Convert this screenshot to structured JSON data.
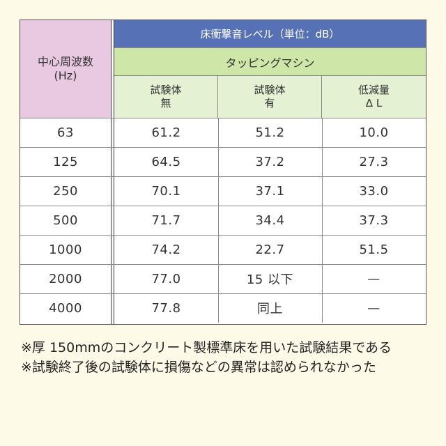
{
  "table": {
    "freq_header": {
      "line1": "中心周波数",
      "line2": "(Hz)"
    },
    "top_band": "床衝撃音レベル（単位：dB）",
    "mid_band": "タッピングマシン",
    "sub_headers": [
      {
        "line1": "試験体",
        "line2": "無"
      },
      {
        "line1": "試験体",
        "line2": "有"
      },
      {
        "line1": "低減量",
        "line2": "Δ L"
      }
    ],
    "rows": [
      {
        "freq": "63",
        "without": "61.2",
        "with": "51.2",
        "reduction": "10.0"
      },
      {
        "freq": "125",
        "without": "64.5",
        "with": "37.2",
        "reduction": "27.3"
      },
      {
        "freq": "250",
        "without": "70.1",
        "with": "37.1",
        "reduction": "33.0"
      },
      {
        "freq": "500",
        "without": "71.7",
        "with": "34.4",
        "reduction": "37.3"
      },
      {
        "freq": "1000",
        "without": "74.2",
        "with": "22.7",
        "reduction": "51.5"
      },
      {
        "freq": "2000",
        "without": "77.0",
        "with": "15 以下",
        "reduction": "—"
      },
      {
        "freq": "4000",
        "without": "77.8",
        "with": "同上",
        "reduction": "—"
      }
    ]
  },
  "notes": [
    "※厚 150mmのコンクリート製標準床を用いた試験結果である",
    "※試験終了後の試験体に損傷などの異常は認められなかった"
  ],
  "colors": {
    "freq_header_bg": "#e9c9e1",
    "top_band_bg": "#5771b6",
    "mid_band_bg": "#cfe6a9",
    "sub_header_bg": "#e5f1d3",
    "page_bg": "#fdfbe8"
  }
}
